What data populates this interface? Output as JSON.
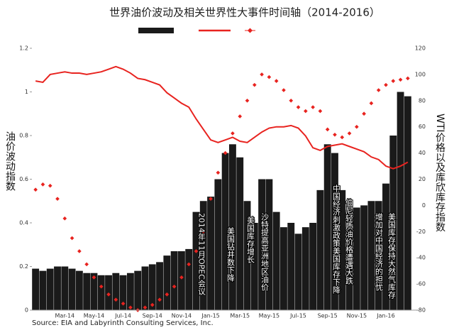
{
  "chart_data": {
    "type": "bar",
    "title": "世界油价波动及相关世界性大事件时间轴（2014-2016）",
    "y_label": "油价波动指数",
    "y2_label": "WTI价格以及库欣库存指数",
    "source": "Source: EIA and Labyrinth Consulting Services, Inc.",
    "categories": [
      null,
      null,
      null,
      null,
      "Mar-14",
      null,
      null,
      null,
      "May-14",
      null,
      null,
      null,
      "Jul-14",
      null,
      null,
      null,
      "Sep-14",
      null,
      null,
      null,
      "Nov-14",
      null,
      null,
      null,
      "Jan-15",
      null,
      null,
      null,
      "Mar-15",
      null,
      null,
      null,
      "May-15",
      null,
      null,
      null,
      "Jul-15",
      null,
      null,
      null,
      "Sep-15",
      null,
      null,
      null,
      "Nov-15",
      null,
      null,
      null,
      "Jan-16",
      null,
      null,
      null
    ],
    "series": [
      {
        "type": "bar",
        "color": "#1a1a1a",
        "values": [
          0.19,
          0.18,
          0.19,
          0.2,
          0.2,
          0.19,
          0.18,
          0.17,
          0.17,
          0.16,
          0.16,
          0.17,
          0.16,
          0.17,
          0.18,
          0.2,
          0.21,
          0.22,
          0.25,
          0.27,
          0.27,
          0.28,
          0.45,
          0.5,
          0.52,
          0.6,
          0.72,
          0.76,
          0.7,
          0.5,
          0.4,
          0.6,
          0.6,
          0.45,
          0.38,
          0.4,
          0.35,
          0.38,
          0.4,
          0.55,
          0.76,
          0.72,
          0.55,
          0.46,
          0.47,
          0.48,
          0.5,
          0.5,
          0.58,
          0.8,
          1.0,
          0.98
        ]
      },
      {
        "type": "line",
        "axis": "y2",
        "color": "#e8231f",
        "values": [
          95,
          94,
          100,
          101,
          102,
          101,
          101,
          100,
          101,
          102,
          104,
          106,
          104,
          101,
          97,
          96,
          94,
          92,
          86,
          82,
          78,
          75,
          66,
          58,
          50,
          48,
          50,
          52,
          49,
          48,
          52,
          56,
          59,
          60,
          60,
          61,
          59,
          53,
          44,
          42,
          45,
          46,
          47,
          45,
          43,
          41,
          37,
          35,
          30,
          28,
          30,
          33
        ]
      },
      {
        "type": "scatter",
        "axis": "y2",
        "color": "#e8231f",
        "values": [
          12,
          16,
          15,
          5,
          -10,
          -25,
          -35,
          -45,
          -55,
          -62,
          -68,
          -72,
          -75,
          -78,
          -80,
          -78,
          -76,
          -72,
          -68,
          -62,
          -55,
          -45,
          -35,
          -20,
          5,
          25,
          40,
          55,
          68,
          80,
          92,
          100,
          98,
          95,
          88,
          80,
          75,
          72,
          75,
          72,
          58,
          54,
          52,
          55,
          60,
          70,
          78,
          88,
          92,
          95,
          96,
          97
        ]
      }
    ],
    "ylim": [
      0,
      1.2
    ],
    "yticks": [
      0,
      0.2,
      0.4,
      0.6,
      0.8,
      1,
      1.2
    ],
    "y2lim": [
      -80,
      120
    ],
    "y2ticks": [
      -80,
      -60,
      -40,
      -20,
      0,
      20,
      40,
      60,
      80,
      100,
      120
    ],
    "annotations": [
      "2014年11月OPEC会议",
      "美国钻井数下降",
      "美国库存增长",
      "沙特提高亚洲地区油价",
      "中国经济刺激政策美国库存下降",
      "伯尼轻质油价格遭遇大跌",
      "增加对中国经济的担忧",
      "美国库存保持大然气库存"
    ]
  }
}
